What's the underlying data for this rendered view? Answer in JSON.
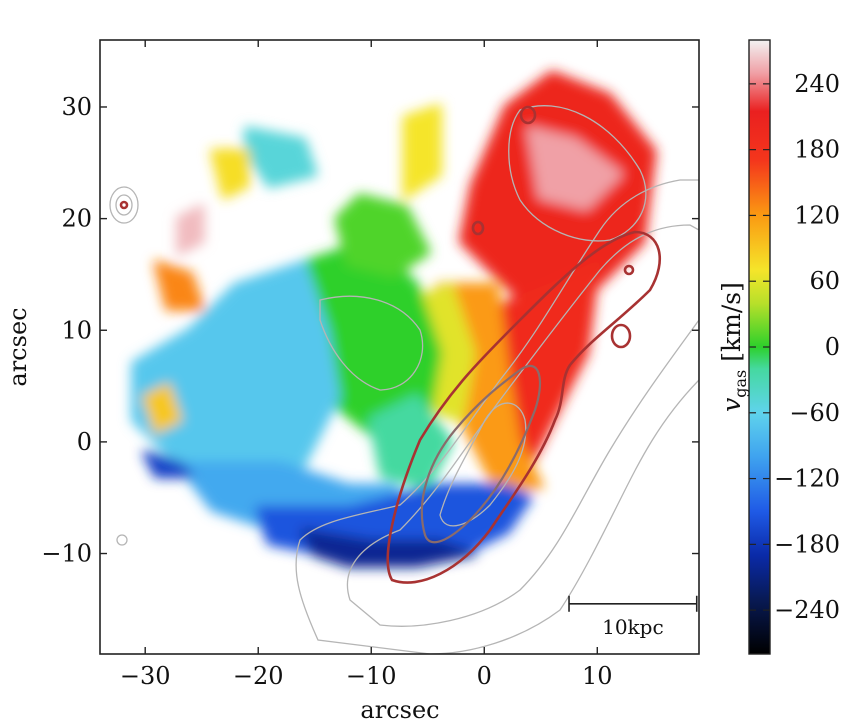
{
  "chart_data": {
    "type": "heatmap",
    "title": "",
    "xlabel": "arcsec",
    "ylabel": "arcsec",
    "xlim": [
      -34,
      19
    ],
    "ylim": [
      -19,
      36
    ],
    "x_ticks": [
      -30,
      -20,
      -10,
      0,
      10
    ],
    "y_ticks": [
      -10,
      0,
      10,
      20,
      30
    ],
    "x_tick_labels": [
      "−30",
      "−20",
      "−10",
      "0",
      "10"
    ],
    "y_tick_labels": [
      "−10",
      "0",
      "10",
      "20",
      "30"
    ],
    "scalebar": {
      "label": "10kpc",
      "x_range": [
        7.5,
        18.8
      ],
      "y": -14.5
    },
    "colorbar": {
      "label_main": "v",
      "label_sub": "gas",
      "label_unit": " [km/s]",
      "range": [
        -280,
        280
      ],
      "ticks": [
        -240,
        -180,
        -120,
        -60,
        0,
        60,
        120,
        180,
        240
      ],
      "tick_labels": [
        "−240",
        "−180",
        "−120",
        "−60",
        "0",
        "60",
        "120",
        "180",
        "240"
      ],
      "stops": [
        {
          "v": -280,
          "color": "#000000"
        },
        {
          "v": -230,
          "color": "#081a55"
        },
        {
          "v": -190,
          "color": "#0a2aa8"
        },
        {
          "v": -150,
          "color": "#1f5ae6"
        },
        {
          "v": -100,
          "color": "#3fa3ef"
        },
        {
          "v": -60,
          "color": "#5fd3ec"
        },
        {
          "v": -20,
          "color": "#45d9a0"
        },
        {
          "v": 0,
          "color": "#2dd02b"
        },
        {
          "v": 40,
          "color": "#b8e02a"
        },
        {
          "v": 70,
          "color": "#f5e52a"
        },
        {
          "v": 120,
          "color": "#fb9a12"
        },
        {
          "v": 170,
          "color": "#f4361c"
        },
        {
          "v": 215,
          "color": "#ea2020"
        },
        {
          "v": 250,
          "color": "#f0a0a6"
        },
        {
          "v": 280,
          "color": "#f2f2f2"
        }
      ]
    },
    "velocity_regions": [
      {
        "name": "north-east-redshift",
        "v": 200,
        "polygon": [
          [
            -1,
            23
          ],
          [
            2,
            30
          ],
          [
            6,
            33
          ],
          [
            11,
            31
          ],
          [
            15,
            26
          ],
          [
            14,
            18
          ],
          [
            10,
            14
          ],
          [
            6,
            10
          ],
          [
            2,
            14
          ],
          [
            -2,
            18
          ]
        ]
      },
      {
        "name": "north-east-peak",
        "v": 250,
        "polygon": [
          [
            4,
            28
          ],
          [
            8,
            27
          ],
          [
            12,
            24
          ],
          [
            9,
            21
          ],
          [
            5,
            22
          ]
        ]
      },
      {
        "name": "central-red",
        "v": 190,
        "polygon": [
          [
            1,
            12
          ],
          [
            6,
            14
          ],
          [
            10,
            16
          ],
          [
            9,
            8
          ],
          [
            6,
            2
          ],
          [
            4,
            -2
          ],
          [
            1,
            1
          ],
          [
            0,
            6
          ]
        ]
      },
      {
        "name": "central-orange",
        "v": 120,
        "polygon": [
          [
            -4,
            14
          ],
          [
            1,
            14
          ],
          [
            2,
            6
          ],
          [
            3,
            0
          ],
          [
            5,
            -4
          ],
          [
            1,
            -4
          ],
          [
            -2,
            2
          ],
          [
            -4,
            8
          ]
        ]
      },
      {
        "name": "inner-yellow",
        "v": 60,
        "polygon": [
          [
            -8,
            12
          ],
          [
            -3,
            14
          ],
          [
            -1,
            8
          ],
          [
            -2,
            2
          ],
          [
            -5,
            3
          ],
          [
            -8,
            6
          ]
        ]
      },
      {
        "name": "central-green",
        "v": 0,
        "polygon": [
          [
            -16,
            16
          ],
          [
            -10,
            18
          ],
          [
            -6,
            14
          ],
          [
            -4,
            8
          ],
          [
            -5,
            2
          ],
          [
            -9,
            0
          ],
          [
            -14,
            4
          ],
          [
            -17,
            10
          ]
        ]
      },
      {
        "name": "south-green",
        "v": -20,
        "polygon": [
          [
            -10,
            2
          ],
          [
            -6,
            4
          ],
          [
            -3,
            0
          ],
          [
            -5,
            -4
          ],
          [
            -9,
            -3
          ]
        ]
      },
      {
        "name": "west-cyan",
        "v": -70,
        "polygon": [
          [
            -22,
            14
          ],
          [
            -16,
            16
          ],
          [
            -14,
            10
          ],
          [
            -13,
            4
          ],
          [
            -16,
            -2
          ],
          [
            -22,
            -4
          ],
          [
            -27,
            -2
          ],
          [
            -31,
            2
          ],
          [
            -31,
            7
          ],
          [
            -26,
            10
          ]
        ]
      },
      {
        "name": "cyan-south",
        "v": -95,
        "polygon": [
          [
            -27,
            -2
          ],
          [
            -18,
            -2
          ],
          [
            -12,
            -4
          ],
          [
            -8,
            -4
          ],
          [
            -6,
            -7
          ],
          [
            -10,
            -9
          ],
          [
            -18,
            -8
          ],
          [
            -24,
            -6
          ]
        ]
      },
      {
        "name": "south-blue",
        "v": -155,
        "polygon": [
          [
            -20,
            -6
          ],
          [
            -12,
            -6
          ],
          [
            -4,
            -4
          ],
          [
            2,
            -4
          ],
          [
            4,
            -5
          ],
          [
            2,
            -8
          ],
          [
            -2,
            -10
          ],
          [
            -8,
            -11
          ],
          [
            -14,
            -10
          ],
          [
            -19,
            -9
          ]
        ]
      },
      {
        "name": "south-deep-blue",
        "v": -200,
        "polygon": [
          [
            -16,
            -8
          ],
          [
            -10,
            -9
          ],
          [
            -4,
            -9
          ],
          [
            -1,
            -10
          ],
          [
            -6,
            -11
          ],
          [
            -12,
            -11
          ],
          [
            -15,
            -10
          ]
        ]
      },
      {
        "name": "west-blue-tip",
        "v": -170,
        "polygon": [
          [
            -30,
            -1
          ],
          [
            -27,
            -2
          ],
          [
            -26,
            -3
          ],
          [
            -29,
            -3
          ]
        ]
      },
      {
        "name": "north-green-blob",
        "v": 10,
        "polygon": [
          [
            -11,
            22
          ],
          [
            -7,
            21
          ],
          [
            -5,
            17
          ],
          [
            -8,
            15
          ],
          [
            -12,
            16
          ],
          [
            -13,
            20
          ]
        ]
      },
      {
        "name": "north-yellow-blob",
        "v": 70,
        "polygon": [
          [
            -7,
            29
          ],
          [
            -4,
            30
          ],
          [
            -4,
            24
          ],
          [
            -7,
            22
          ]
        ]
      },
      {
        "name": "north-west-cyan-blob",
        "v": -50,
        "polygon": [
          [
            -21,
            28
          ],
          [
            -16,
            27
          ],
          [
            -15,
            24
          ],
          [
            -19,
            23
          ],
          [
            -21,
            26
          ]
        ]
      },
      {
        "name": "north-west-yellow-blob",
        "v": 75,
        "polygon": [
          [
            -24,
            26
          ],
          [
            -21,
            26
          ],
          [
            -21,
            23
          ],
          [
            -23,
            22
          ]
        ]
      },
      {
        "name": "west-orange-blob",
        "v": 130,
        "polygon": [
          [
            -29,
            16
          ],
          [
            -26,
            15
          ],
          [
            -25,
            12
          ],
          [
            -28,
            12
          ]
        ]
      },
      {
        "name": "west-yellow-clumps",
        "v": 90,
        "polygon": [
          [
            -30,
            4
          ],
          [
            -28,
            5
          ],
          [
            -27,
            2
          ],
          [
            -29,
            1
          ]
        ]
      },
      {
        "name": "north-white-blob",
        "v": 260,
        "polygon": [
          [
            -27,
            20
          ],
          [
            -25,
            21
          ],
          [
            -25,
            18
          ],
          [
            -27,
            17
          ]
        ]
      }
    ]
  }
}
